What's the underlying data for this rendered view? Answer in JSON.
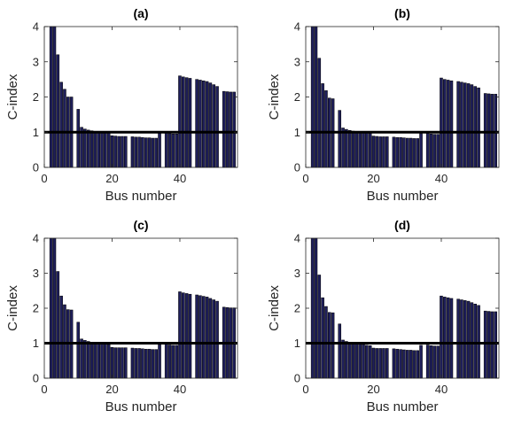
{
  "figure": {
    "colors": {
      "bar_fill": "#1f1f5a",
      "bar_edge": "#000000",
      "threshold_line": "#000000",
      "axes": "#262626",
      "background": "#ffffff"
    }
  },
  "chart_data": [
    {
      "type": "bar",
      "title": "(a)",
      "xlabel": "Bus number",
      "ylabel": "C-index",
      "xlim": [
        0,
        57
      ],
      "ylim": [
        0,
        4
      ],
      "xticks": [
        "0",
        "20",
        "40"
      ],
      "yticks": [
        "0",
        "1",
        "2",
        "3",
        "4"
      ],
      "grid": false,
      "reference_line": 1,
      "x": [
        2,
        3,
        4,
        5,
        6,
        7,
        8,
        10,
        11,
        12,
        13,
        14,
        15,
        16,
        17,
        18,
        19,
        20,
        21,
        22,
        23,
        24,
        26,
        27,
        28,
        29,
        30,
        31,
        32,
        33,
        34,
        36,
        37,
        38,
        39,
        40,
        41,
        42,
        43,
        45,
        46,
        47,
        48,
        49,
        50,
        51,
        53,
        54,
        55,
        56
      ],
      "values": [
        4.0,
        4.0,
        3.2,
        2.42,
        2.22,
        2.0,
        2.0,
        1.65,
        1.14,
        1.09,
        1.06,
        1.04,
        1.02,
        1.01,
        1.0,
        1.0,
        0.99,
        0.9,
        0.89,
        0.88,
        0.88,
        0.88,
        0.87,
        0.86,
        0.86,
        0.85,
        0.84,
        0.84,
        0.83,
        0.83,
        0.97,
        0.98,
        0.96,
        0.95,
        0.95,
        2.6,
        2.57,
        2.55,
        2.53,
        2.5,
        2.48,
        2.46,
        2.44,
        2.4,
        2.35,
        2.3,
        2.16,
        2.15,
        2.14,
        2.14
      ]
    },
    {
      "type": "bar",
      "title": "(b)",
      "xlabel": "Bus number",
      "ylabel": "C-index",
      "xlim": [
        0,
        57
      ],
      "ylim": [
        0,
        4
      ],
      "xticks": [
        "0",
        "20",
        "40"
      ],
      "yticks": [
        "0",
        "1",
        "2",
        "3",
        "4"
      ],
      "grid": false,
      "reference_line": 1,
      "x": [
        2,
        3,
        4,
        5,
        6,
        7,
        8,
        10,
        11,
        12,
        13,
        14,
        15,
        16,
        17,
        18,
        19,
        20,
        21,
        22,
        23,
        24,
        26,
        27,
        28,
        29,
        30,
        31,
        32,
        33,
        34,
        36,
        37,
        38,
        39,
        40,
        41,
        42,
        43,
        45,
        46,
        47,
        48,
        49,
        50,
        51,
        53,
        54,
        55,
        56
      ],
      "values": [
        4.0,
        4.0,
        3.1,
        2.38,
        2.18,
        1.97,
        1.95,
        1.62,
        1.12,
        1.08,
        1.05,
        1.03,
        1.01,
        1.0,
        0.99,
        0.98,
        0.97,
        0.89,
        0.88,
        0.87,
        0.87,
        0.87,
        0.86,
        0.85,
        0.85,
        0.84,
        0.83,
        0.83,
        0.82,
        0.82,
        0.96,
        0.97,
        0.95,
        0.94,
        0.94,
        2.54,
        2.5,
        2.48,
        2.46,
        2.44,
        2.42,
        2.4,
        2.38,
        2.35,
        2.3,
        2.26,
        2.1,
        2.09,
        2.08,
        2.08
      ]
    },
    {
      "type": "bar",
      "title": "(c)",
      "xlabel": "Bus number",
      "ylabel": "C-index",
      "xlim": [
        0,
        57
      ],
      "ylim": [
        0,
        4
      ],
      "xticks": [
        "0",
        "20",
        "40"
      ],
      "yticks": [
        "0",
        "1",
        "2",
        "3",
        "4"
      ],
      "grid": false,
      "reference_line": 1,
      "x": [
        2,
        3,
        4,
        5,
        6,
        7,
        8,
        10,
        11,
        12,
        13,
        14,
        15,
        16,
        17,
        18,
        19,
        20,
        21,
        22,
        23,
        24,
        26,
        27,
        28,
        29,
        30,
        31,
        32,
        33,
        34,
        36,
        37,
        38,
        39,
        40,
        41,
        42,
        43,
        45,
        46,
        47,
        48,
        49,
        50,
        51,
        53,
        54,
        55,
        56
      ],
      "values": [
        4.0,
        4.0,
        3.05,
        2.35,
        2.1,
        1.96,
        1.95,
        1.6,
        1.12,
        1.08,
        1.05,
        1.03,
        1.01,
        1.0,
        0.99,
        0.97,
        0.96,
        0.88,
        0.87,
        0.87,
        0.87,
        0.87,
        0.86,
        0.85,
        0.85,
        0.84,
        0.83,
        0.83,
        0.82,
        0.82,
        0.96,
        0.97,
        0.95,
        0.94,
        0.94,
        2.47,
        2.44,
        2.42,
        2.4,
        2.38,
        2.36,
        2.34,
        2.32,
        2.28,
        2.24,
        2.2,
        2.03,
        2.02,
        2.01,
        2.01
      ]
    },
    {
      "type": "bar",
      "title": "(d)",
      "xlabel": "Bus number",
      "ylabel": "C-index",
      "xlim": [
        0,
        57
      ],
      "ylim": [
        0,
        4
      ],
      "xticks": [
        "0",
        "20",
        "40"
      ],
      "yticks": [
        "0",
        "1",
        "2",
        "3",
        "4"
      ],
      "grid": false,
      "reference_line": 1,
      "x": [
        2,
        3,
        4,
        5,
        6,
        7,
        8,
        10,
        11,
        12,
        13,
        14,
        15,
        16,
        17,
        18,
        19,
        20,
        21,
        22,
        23,
        24,
        26,
        27,
        28,
        29,
        30,
        31,
        32,
        33,
        34,
        36,
        37,
        38,
        39,
        40,
        41,
        42,
        43,
        45,
        46,
        47,
        48,
        49,
        50,
        51,
        53,
        54,
        55,
        56
      ],
      "values": [
        4.0,
        4.0,
        2.95,
        2.3,
        2.05,
        1.88,
        1.87,
        1.55,
        1.09,
        1.05,
        1.02,
        1.0,
        0.98,
        0.97,
        0.96,
        0.94,
        0.93,
        0.86,
        0.85,
        0.85,
        0.85,
        0.85,
        0.84,
        0.83,
        0.82,
        0.81,
        0.8,
        0.8,
        0.79,
        0.79,
        0.94,
        0.95,
        0.93,
        0.92,
        0.92,
        2.35,
        2.32,
        2.3,
        2.28,
        2.26,
        2.24,
        2.22,
        2.2,
        2.16,
        2.12,
        2.08,
        1.92,
        1.91,
        1.9,
        1.9
      ]
    }
  ]
}
